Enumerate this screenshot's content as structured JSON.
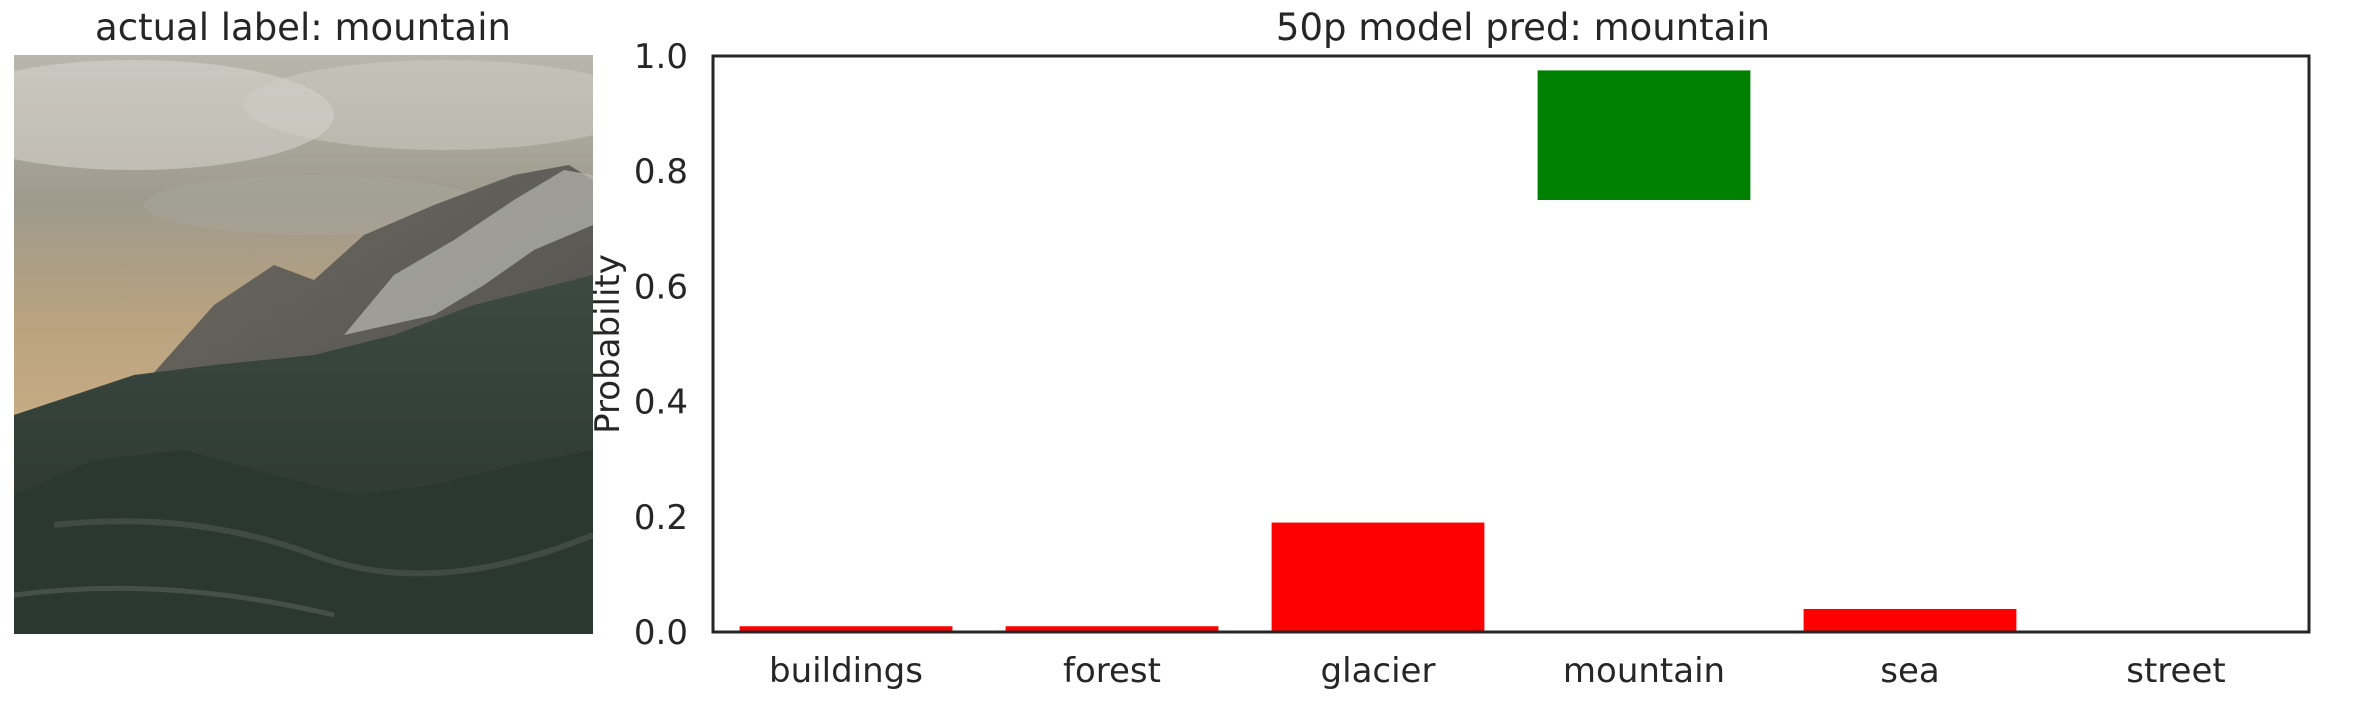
{
  "image_panel": {
    "title": "actual label: mountain"
  },
  "chart_data": {
    "type": "bar",
    "title": "50p model pred: mountain",
    "xlabel": "",
    "ylabel": "Probability",
    "categories": [
      "buildings",
      "forest",
      "glacier",
      "mountain",
      "sea",
      "street"
    ],
    "series": [
      {
        "values": [
          0.01,
          0.01,
          0.19,
          0.975,
          0.04,
          0.0
        ],
        "bar_bottoms": [
          0,
          0,
          0,
          0.75,
          0,
          0
        ]
      }
    ],
    "bar_colors": [
      "#ff0000",
      "#ff0000",
      "#ff0000",
      "#008000",
      "#ff0000",
      "#ff0000"
    ],
    "ylim": [
      0,
      1.0
    ],
    "yticks": [
      "0.0",
      "0.2",
      "0.4",
      "0.6",
      "0.8",
      "1.0"
    ],
    "grid": false,
    "legend": "none"
  }
}
